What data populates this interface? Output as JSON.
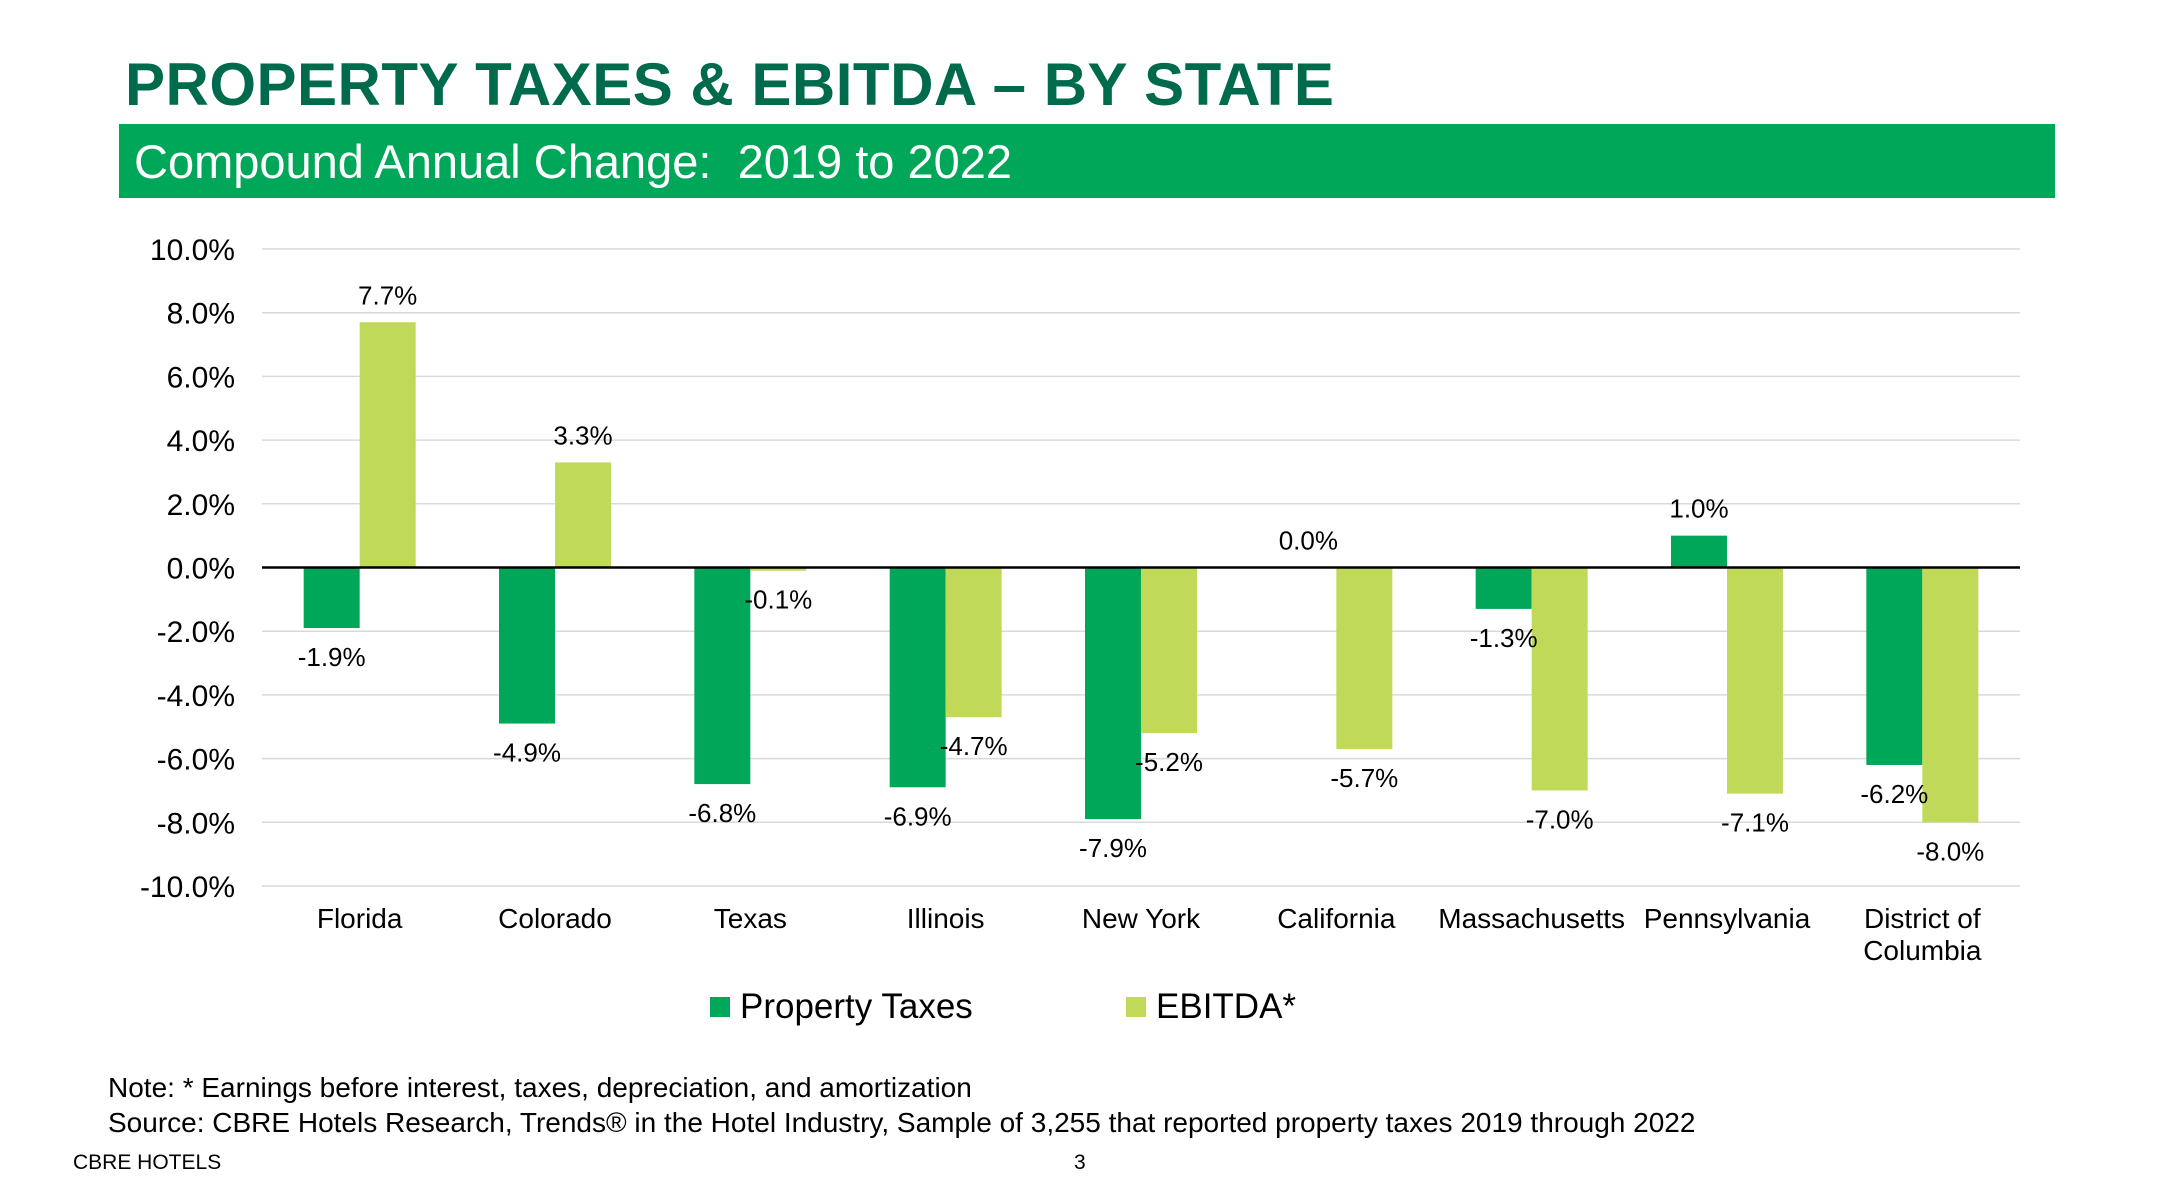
{
  "slide": {
    "title": "PROPERTY TAXES & EBITDA – BY STATE",
    "subtitle": "Compound Annual Change:  2019 to 2022",
    "note": "Note: * Earnings before interest, taxes, depreciation, and amortization",
    "source": "Source: CBRE Hotels Research, Trends® in the Hotel Industry, Sample of 3,255 that reported property taxes 2019 through 2022",
    "footer_left": "CBRE HOTELS",
    "page_number": "3"
  },
  "colors": {
    "title": "#006a4d",
    "band": "#00a758",
    "property_taxes": "#00a758",
    "ebitda": "#c0d959",
    "grid": "#d9d9d9",
    "zero_line": "#000000"
  },
  "chart_data": {
    "type": "bar",
    "title": "Compound Annual Change:  2019 to 2022",
    "categories": [
      "Florida",
      "Colorado",
      "Texas",
      "Illinois",
      "New York",
      "California",
      "Massachusetts",
      "Pennsylvania",
      "District of Columbia"
    ],
    "series": [
      {
        "name": "Property Taxes",
        "values": [
          -1.9,
          -4.9,
          -6.8,
          -6.9,
          -7.9,
          0.0,
          -1.3,
          1.0,
          -6.2
        ],
        "labels": [
          "-1.9%",
          "-4.9%",
          "-6.8%",
          "-6.9%",
          "-7.9%",
          "0.0%",
          "-1.3%",
          "1.0%",
          "-6.2%"
        ]
      },
      {
        "name": "EBITDA*",
        "values": [
          7.7,
          3.3,
          -0.1,
          -4.7,
          -5.2,
          -5.7,
          -7.0,
          -7.1,
          -8.0
        ],
        "labels": [
          "7.7%",
          "3.3%",
          "-0.1%",
          "-4.7%",
          "-5.2%",
          "-5.7%",
          "-7.0%",
          "-7.1%",
          "-8.0%"
        ]
      }
    ],
    "yticks": [
      "10.0%",
      "8.0%",
      "6.0%",
      "4.0%",
      "2.0%",
      "0.0%",
      "-2.0%",
      "-4.0%",
      "-6.0%",
      "-8.0%",
      "-10.0%"
    ],
    "ylim": [
      -10,
      10
    ],
    "ytick_values": [
      10,
      8,
      6,
      4,
      2,
      0,
      -2,
      -4,
      -6,
      -8,
      -10
    ],
    "xlabel": "",
    "ylabel": "",
    "grid": true,
    "legend_position": "bottom"
  }
}
